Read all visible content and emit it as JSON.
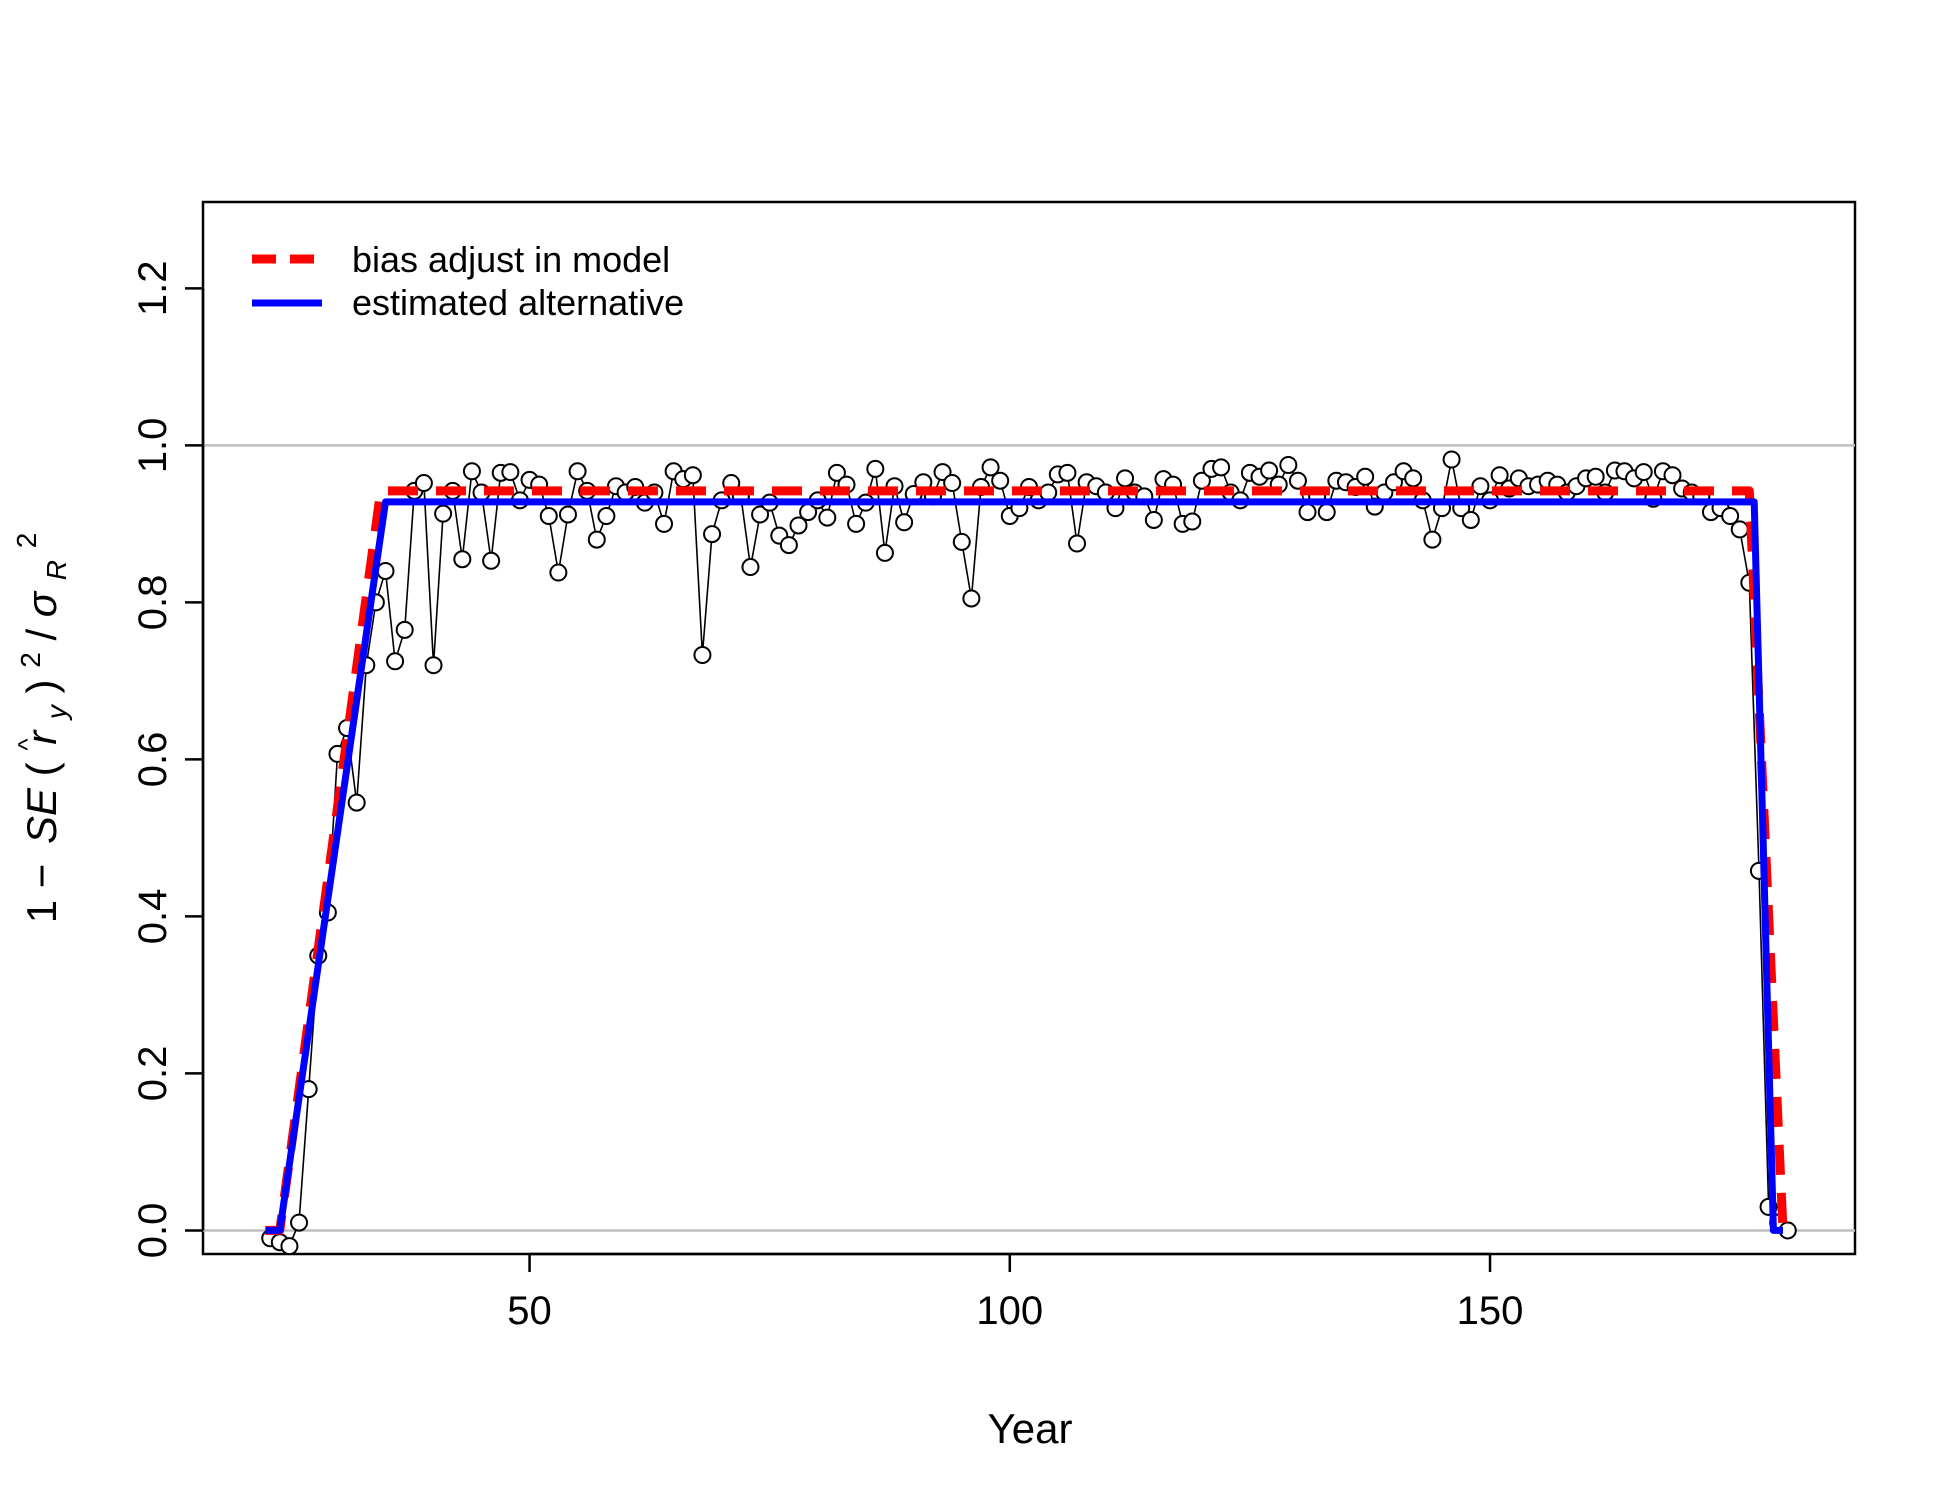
{
  "chart_data": {
    "type": "line",
    "xlabel": "Year",
    "ylabel": "1 − SE(r̂ᵧ)²/σR²",
    "ylabel_parts": {
      "prefix": "1 −",
      "se": "SE",
      "open": "(",
      "hat": "^",
      "r": "r",
      "sub_y": "y",
      "close": ")",
      "sup2": "2",
      "slash": "/",
      "sigma": "σ",
      "sub_R": "R",
      "sup2b": "2"
    },
    "xlim": [
      16,
      188
    ],
    "ylim": [
      -0.03,
      1.31
    ],
    "xticks": [
      50,
      100,
      150
    ],
    "yticks": [
      0.0,
      0.2,
      0.4,
      0.6,
      0.8,
      1.0,
      1.2
    ],
    "ytick_labels": [
      "0.0",
      "0.2",
      "0.4",
      "0.6",
      "0.8",
      "1.0",
      "1.2"
    ],
    "reference_lines": [
      0.0,
      1.0
    ],
    "legend_position": "top-left",
    "series": [
      {
        "name": "bias adjust in model",
        "style": "dashed",
        "color": "#ff0000",
        "x": [
          22.5,
          24,
          34.5,
          35,
          177,
          180.5,
          181.5
        ],
        "y": [
          0.0,
          0.0,
          0.942,
          0.942,
          0.942,
          0.0,
          0.0
        ]
      },
      {
        "name": "estimated alternative",
        "style": "solid",
        "color": "#0000ff",
        "x": [
          22.5,
          24,
          35,
          177.5,
          179.5,
          180.5
        ],
        "y": [
          0.0,
          0.0,
          0.928,
          0.928,
          0.0,
          0.0
        ]
      },
      {
        "type": "scatter",
        "style": "points-with-lines",
        "color": "#000000",
        "x": [
          23,
          24,
          25,
          26,
          27,
          28,
          29,
          30,
          31,
          32,
          33,
          34,
          35,
          36,
          37,
          38,
          39,
          40,
          41,
          42,
          43,
          44,
          45,
          46,
          47,
          48,
          49,
          50,
          51,
          52,
          53,
          54,
          55,
          56,
          57,
          58,
          59,
          60,
          61,
          62,
          63,
          64,
          65,
          66,
          67,
          68,
          69,
          70,
          71,
          72,
          73,
          74,
          75,
          76,
          77,
          78,
          79,
          80,
          81,
          82,
          83,
          84,
          85,
          86,
          87,
          88,
          89,
          90,
          91,
          92,
          93,
          94,
          95,
          96,
          97,
          98,
          99,
          100,
          101,
          102,
          103,
          104,
          105,
          106,
          107,
          108,
          109,
          110,
          111,
          112,
          113,
          114,
          115,
          116,
          117,
          118,
          119,
          120,
          121,
          122,
          123,
          124,
          125,
          126,
          127,
          128,
          129,
          130,
          131,
          132,
          133,
          134,
          135,
          136,
          137,
          138,
          139,
          140,
          141,
          142,
          143,
          144,
          145,
          146,
          147,
          148,
          149,
          150,
          151,
          152,
          153,
          154,
          155,
          156,
          157,
          158,
          159,
          160,
          161,
          162,
          163,
          164,
          165,
          166,
          167,
          168,
          169,
          170,
          171,
          172,
          173,
          174,
          175,
          176,
          177,
          178,
          179,
          180,
          181
        ],
        "y": [
          -0.01,
          -0.015,
          -0.02,
          0.01,
          0.18,
          0.35,
          0.405,
          0.607,
          0.64,
          0.545,
          0.72,
          0.8,
          0.84,
          0.725,
          0.765,
          0.942,
          0.952,
          0.72,
          0.913,
          0.942,
          0.855,
          0.967,
          0.94,
          0.853,
          0.965,
          0.966,
          0.93,
          0.956,
          0.95,
          0.91,
          0.838,
          0.912,
          0.967,
          0.942,
          0.88,
          0.91,
          0.948,
          0.94,
          0.947,
          0.927,
          0.94,
          0.9,
          0.967,
          0.957,
          0.962,
          0.733,
          0.887,
          0.93,
          0.952,
          0.935,
          0.845,
          0.912,
          0.927,
          0.885,
          0.873,
          0.898,
          0.915,
          0.93,
          0.908,
          0.965,
          0.95,
          0.9,
          0.927,
          0.97,
          0.863,
          0.948,
          0.902,
          0.938,
          0.953,
          0.935,
          0.966,
          0.952,
          0.877,
          0.805,
          0.947,
          0.972,
          0.955,
          0.91,
          0.92,
          0.947,
          0.93,
          0.94,
          0.963,
          0.965,
          0.875,
          0.953,
          0.948,
          0.94,
          0.92,
          0.958,
          0.94,
          0.935,
          0.905,
          0.957,
          0.95,
          0.9,
          0.903,
          0.955,
          0.97,
          0.972,
          0.94,
          0.93,
          0.965,
          0.96,
          0.968,
          0.95,
          0.975,
          0.955,
          0.915,
          0.935,
          0.915,
          0.955,
          0.953,
          0.947,
          0.96,
          0.922,
          0.94,
          0.953,
          0.967,
          0.958,
          0.93,
          0.88,
          0.92,
          0.982,
          0.92,
          0.905,
          0.948,
          0.93,
          0.962,
          0.945,
          0.958,
          0.948,
          0.95,
          0.955,
          0.95,
          0.94,
          0.948,
          0.958,
          0.96,
          0.94,
          0.968,
          0.967,
          0.958,
          0.966,
          0.932,
          0.967,
          0.962,
          0.945,
          0.94,
          0.935,
          0.915,
          0.92,
          0.91,
          0.893,
          0.825,
          0.458,
          0.03,
          0.01,
          0.0
        ]
      }
    ],
    "legend_entries": [
      {
        "label": "bias adjust in model",
        "color": "#ff0000",
        "style": "dashed"
      },
      {
        "label": "estimated alternative",
        "color": "#0000ff",
        "style": "solid"
      }
    ]
  }
}
